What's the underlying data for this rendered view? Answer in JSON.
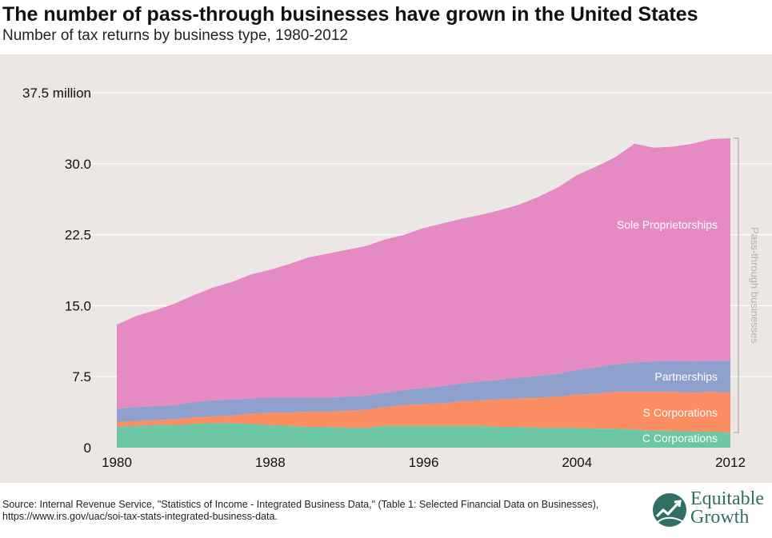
{
  "title": "The number of pass-through businesses have grown in the United States",
  "subtitle": "Number of tax returns by business type, 1980-2012",
  "source": "Source: Internal Revenue Service, \"Statistics of Income - Integrated Business Data,\" (Table 1: Selected Financial Data on Businesses), https://www.irs.gov/uac/soi-tax-stats-integrated-business-data.",
  "logo": {
    "line1": "Equitable",
    "line2": "Growth",
    "icon": "growth-leaf-icon"
  },
  "colors": {
    "c_corporations": "#6cc7a4",
    "s_corporations": "#fb8d62",
    "partnerships": "#8ea0cb",
    "sole_proprietorships": "#e68ac3",
    "panel_background": "#ebe7e5",
    "gridline": "#ffffff",
    "bracket": "#b6b2b0",
    "logo": "#2f6f64"
  },
  "chart_data": {
    "type": "area",
    "stacked": true,
    "title": "The number of pass-through businesses have grown in the United States",
    "subtitle": "Number of tax returns by business type, 1980-2012",
    "xlabel": "",
    "ylabel": "",
    "xlim": [
      1980,
      2012
    ],
    "ylim": [
      0,
      37.5
    ],
    "x_ticks": [
      1980,
      1988,
      1996,
      2004,
      2012
    ],
    "x_tick_labels": [
      "1980",
      "1988",
      "1996",
      "2004",
      "2012"
    ],
    "y_ticks": [
      0,
      7.5,
      15,
      22.5,
      30,
      37.5
    ],
    "y_tick_labels": [
      "0",
      "7.5",
      "15.0",
      "22.5",
      "30.0",
      "37.5 million"
    ],
    "grid": "horizontal",
    "x": [
      1980,
      1981,
      1982,
      1983,
      1984,
      1985,
      1986,
      1987,
      1988,
      1989,
      1990,
      1991,
      1992,
      1993,
      1994,
      1995,
      1996,
      1997,
      1998,
      1999,
      2000,
      2001,
      2002,
      2003,
      2004,
      2005,
      2006,
      2007,
      2008,
      2009,
      2010,
      2011,
      2012
    ],
    "series": [
      {
        "name": "C Corporations",
        "color": "#6cc7a4",
        "values": [
          2.2,
          2.3,
          2.4,
          2.4,
          2.5,
          2.6,
          2.6,
          2.5,
          2.4,
          2.3,
          2.2,
          2.2,
          2.1,
          2.1,
          2.3,
          2.3,
          2.3,
          2.3,
          2.3,
          2.3,
          2.2,
          2.2,
          2.1,
          2.1,
          2.1,
          2.0,
          2.0,
          1.9,
          1.8,
          1.8,
          1.7,
          1.7,
          1.6
        ]
      },
      {
        "name": "S Corporations",
        "color": "#fb8d62",
        "values": [
          0.5,
          0.5,
          0.5,
          0.6,
          0.7,
          0.7,
          0.8,
          1.1,
          1.3,
          1.4,
          1.6,
          1.6,
          1.8,
          1.9,
          2.0,
          2.2,
          2.3,
          2.4,
          2.6,
          2.7,
          2.9,
          3.0,
          3.2,
          3.3,
          3.5,
          3.7,
          3.9,
          4.0,
          4.1,
          4.1,
          4.1,
          4.2,
          4.2
        ]
      },
      {
        "name": "Partnerships",
        "color": "#8ea0cb",
        "values": [
          1.4,
          1.5,
          1.5,
          1.5,
          1.6,
          1.7,
          1.7,
          1.6,
          1.6,
          1.6,
          1.5,
          1.5,
          1.5,
          1.5,
          1.5,
          1.6,
          1.7,
          1.8,
          1.9,
          2.0,
          2.1,
          2.2,
          2.3,
          2.4,
          2.6,
          2.8,
          2.9,
          3.1,
          3.2,
          3.3,
          3.3,
          3.3,
          3.4
        ]
      },
      {
        "name": "Sole Proprietorships",
        "color": "#e68ac3",
        "values": [
          8.9,
          9.6,
          10.1,
          10.7,
          11.3,
          11.9,
          12.4,
          13.1,
          13.5,
          14.1,
          14.8,
          15.2,
          15.5,
          15.8,
          16.2,
          16.4,
          16.9,
          17.2,
          17.4,
          17.6,
          17.9,
          18.3,
          18.9,
          19.7,
          20.6,
          21.2,
          21.9,
          23.1,
          22.6,
          22.6,
          23.0,
          23.4,
          23.5
        ]
      }
    ],
    "bracket_label": "Pass-through businesses",
    "axis_unit_label": "37.5 million"
  }
}
